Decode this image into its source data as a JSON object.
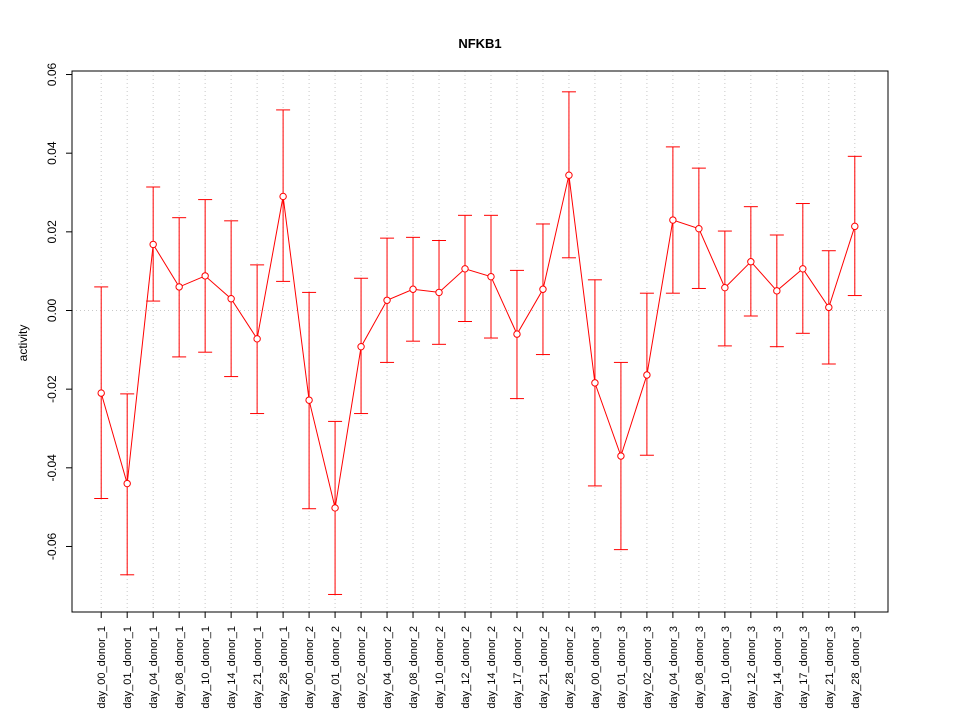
{
  "chart_data": {
    "type": "line",
    "title": "NFKB1",
    "xlabel": "",
    "ylabel": "activity",
    "ylim": [
      -0.0775,
      0.06
    ],
    "yticks": [
      -0.06,
      -0.04,
      -0.02,
      0.0,
      0.02,
      0.04,
      0.06
    ],
    "ytick_labels": [
      "-0.06",
      "-0.04",
      "-0.02",
      "0.00",
      "0.02",
      "0.04",
      "0.06"
    ],
    "grid": true,
    "color": "#ff0000",
    "categories": [
      "day_00_donor_1",
      "day_01_donor_1",
      "day_04_donor_1",
      "day_08_donor_1",
      "day_10_donor_1",
      "day_14_donor_1",
      "day_21_donor_1",
      "day_28_donor_1",
      "day_00_donor_2",
      "day_01_donor_2",
      "day_02_donor_2",
      "day_04_donor_2",
      "day_08_donor_2",
      "day_10_donor_2",
      "day_12_donor_2",
      "day_14_donor_2",
      "day_17_donor_2",
      "day_21_donor_2",
      "day_28_donor_2",
      "day_00_donor_3",
      "day_01_donor_3",
      "day_02_donor_3",
      "day_04_donor_3",
      "day_08_donor_3",
      "day_10_donor_3",
      "day_12_donor_3",
      "day_14_donor_3",
      "day_17_donor_3",
      "day_21_donor_3",
      "day_28_donor_3"
    ],
    "values": [
      -0.021,
      -0.044,
      0.0168,
      0.006,
      0.0088,
      0.003,
      -0.0072,
      0.029,
      -0.0228,
      -0.0502,
      -0.0092,
      0.0026,
      0.0054,
      0.0046,
      0.0106,
      0.0086,
      -0.006,
      0.0054,
      0.0344,
      -0.0184,
      -0.037,
      -0.0164,
      0.023,
      0.0208,
      0.0058,
      0.0124,
      0.005,
      0.0106,
      0.0008,
      0.0214
    ],
    "upper": [
      0.006,
      -0.0212,
      0.0314,
      0.0236,
      0.0282,
      0.0228,
      0.0116,
      0.051,
      0.0046,
      -0.0282,
      0.0082,
      0.0184,
      0.0186,
      0.0178,
      0.0242,
      0.0242,
      0.0102,
      0.022,
      0.0556,
      0.0078,
      -0.0132,
      0.0044,
      0.0416,
      0.0362,
      0.0202,
      0.0264,
      0.0192,
      0.0272,
      0.0152,
      0.0392
    ],
    "lower": [
      -0.0478,
      -0.0672,
      0.0024,
      -0.0118,
      -0.0106,
      -0.0168,
      -0.0262,
      0.0074,
      -0.0504,
      -0.0722,
      -0.0262,
      -0.0132,
      -0.0078,
      -0.0086,
      -0.0028,
      -0.007,
      -0.0224,
      -0.0112,
      0.0134,
      -0.0446,
      -0.0608,
      -0.0368,
      0.0044,
      0.0056,
      -0.009,
      -0.0014,
      -0.0092,
      -0.0058,
      -0.0136,
      0.0038
    ]
  }
}
